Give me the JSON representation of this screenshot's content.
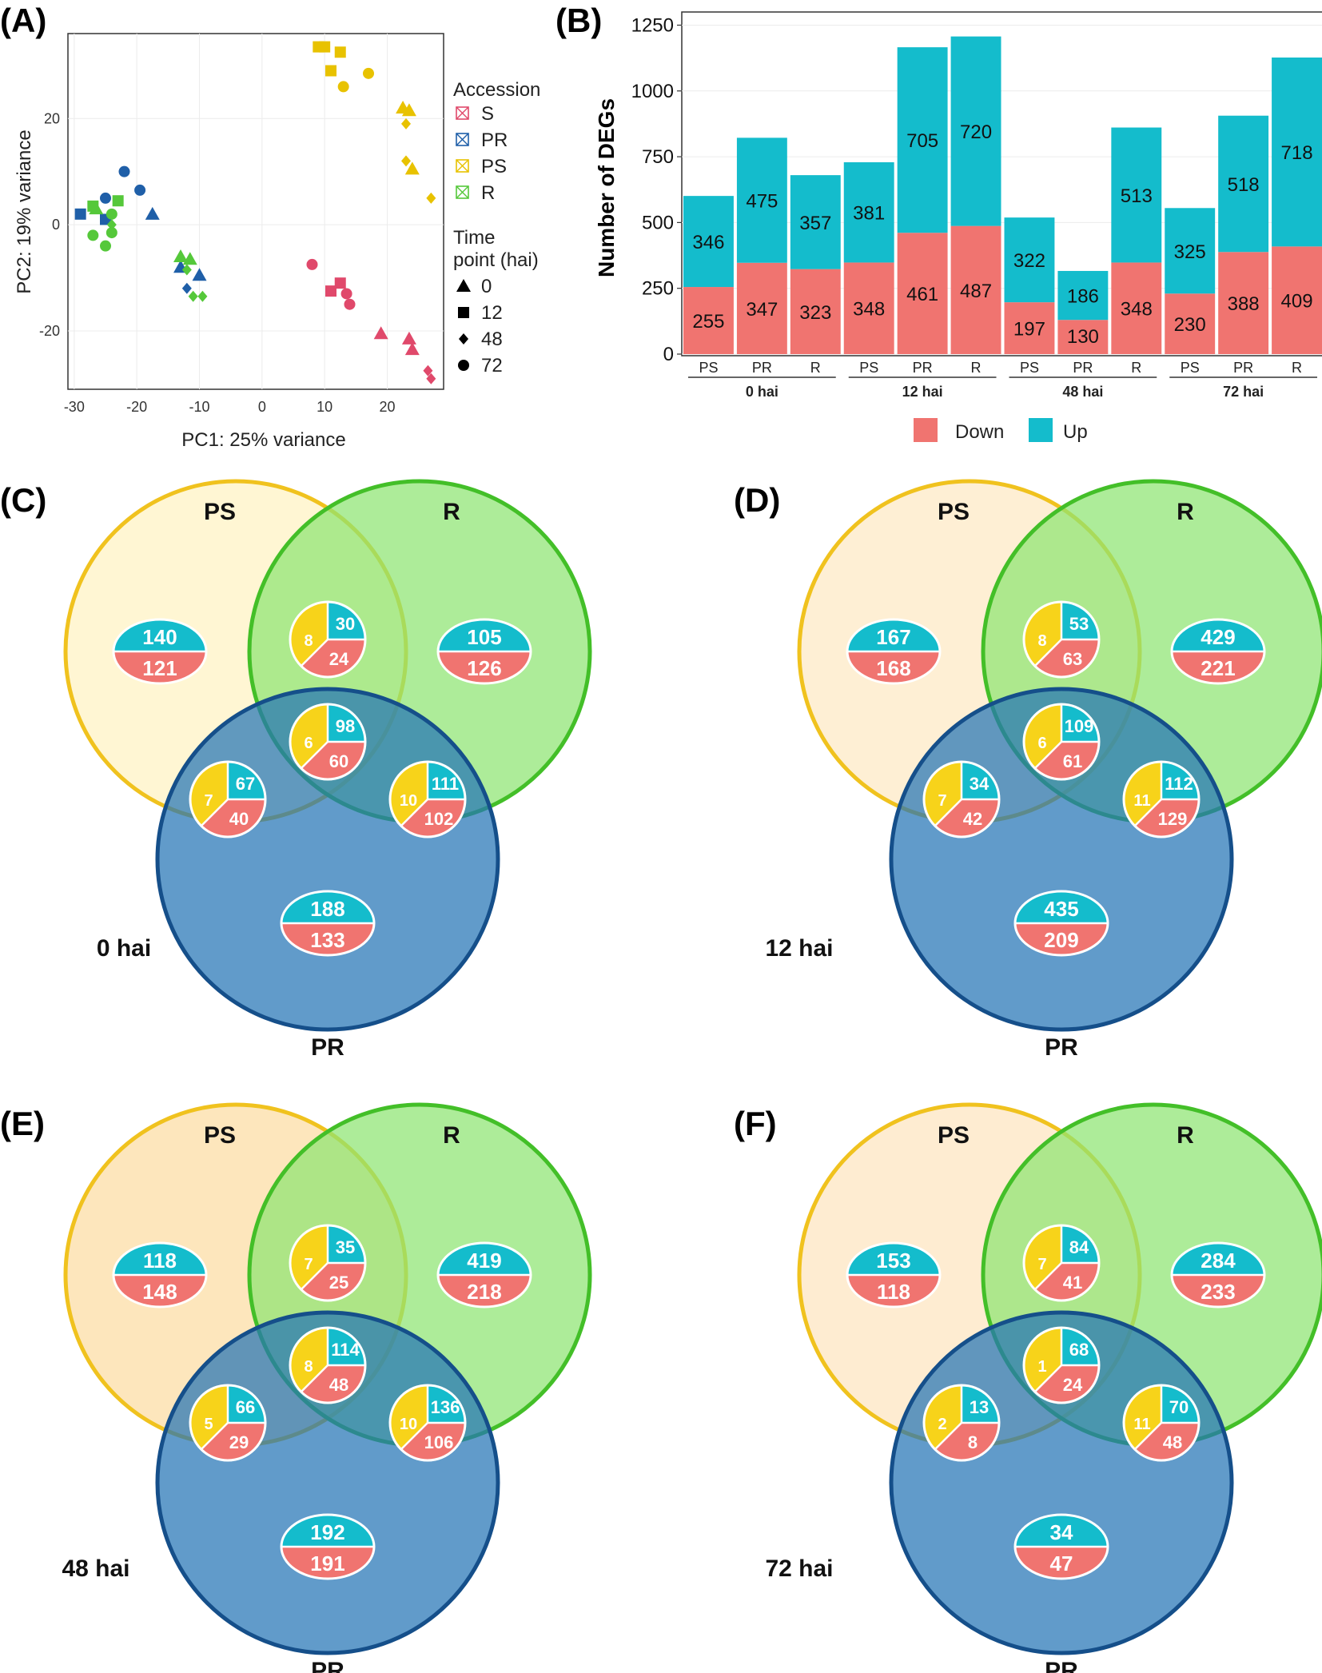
{
  "panel_labels": {
    "A": "(A)",
    "B": "(B)",
    "C": "(C)",
    "D": "(D)",
    "E": "(E)",
    "F": "(F)"
  },
  "colors": {
    "S": "#e0496b",
    "PR": "#1f5fa8",
    "PS": "#e8c200",
    "R": "#55c83a",
    "down": "#f07470",
    "up": "#14bccc",
    "grid": "#ececec"
  },
  "chart_data": [
    {
      "type": "scatter",
      "title": "",
      "xlabel": "PC1: 25% variance",
      "ylabel": "PC2: 19% variance",
      "xlim": [
        -31,
        29
      ],
      "ylim": [
        -31,
        36
      ],
      "xticks": [
        -30,
        -20,
        -10,
        0,
        10,
        20
      ],
      "yticks": [
        -20,
        0,
        20
      ],
      "legend": {
        "accession_title": "Accession",
        "accessions": [
          "S",
          "PR",
          "PS",
          "R"
        ],
        "time_title_1": "Time",
        "time_title_2": "point (hai)",
        "times": [
          "0",
          "12",
          "48",
          "72"
        ]
      },
      "points": [
        {
          "acc": "PS",
          "t": "12",
          "x": 9,
          "y": 33.5
        },
        {
          "acc": "PS",
          "t": "12",
          "x": 10,
          "y": 33.5
        },
        {
          "acc": "PS",
          "t": "12",
          "x": 11,
          "y": 29
        },
        {
          "acc": "PS",
          "t": "12",
          "x": 12.5,
          "y": 32.5
        },
        {
          "acc": "PS",
          "t": "72",
          "x": 13,
          "y": 26
        },
        {
          "acc": "PS",
          "t": "72",
          "x": 17,
          "y": 28.5
        },
        {
          "acc": "PS",
          "t": "0",
          "x": 22.5,
          "y": 22
        },
        {
          "acc": "PS",
          "t": "0",
          "x": 23.5,
          "y": 21.5
        },
        {
          "acc": "PS",
          "t": "48",
          "x": 23,
          "y": 19
        },
        {
          "acc": "PS",
          "t": "48",
          "x": 23,
          "y": 12
        },
        {
          "acc": "PS",
          "t": "0",
          "x": 24,
          "y": 10.5
        },
        {
          "acc": "PS",
          "t": "48",
          "x": 27,
          "y": 5
        },
        {
          "acc": "PR",
          "t": "72",
          "x": -22,
          "y": 10
        },
        {
          "acc": "PR",
          "t": "72",
          "x": -19.5,
          "y": 6.5
        },
        {
          "acc": "PR",
          "t": "0",
          "x": -17.5,
          "y": 2
        },
        {
          "acc": "PR",
          "t": "12",
          "x": -29,
          "y": 2
        },
        {
          "acc": "PR",
          "t": "72",
          "x": -25,
          "y": 5
        },
        {
          "acc": "PR",
          "t": "12",
          "x": -25,
          "y": 1
        },
        {
          "acc": "PR",
          "t": "0",
          "x": -13,
          "y": -8
        },
        {
          "acc": "PR",
          "t": "48",
          "x": -12,
          "y": -12
        },
        {
          "acc": "PR",
          "t": "0",
          "x": -10,
          "y": -9.5
        },
        {
          "acc": "R",
          "t": "12",
          "x": -27,
          "y": 3.5
        },
        {
          "acc": "R",
          "t": "0",
          "x": -26.5,
          "y": 3
        },
        {
          "acc": "R",
          "t": "12",
          "x": -23,
          "y": 4.5
        },
        {
          "acc": "R",
          "t": "72",
          "x": -24,
          "y": 2
        },
        {
          "acc": "R",
          "t": "72",
          "x": -27,
          "y": -2
        },
        {
          "acc": "R",
          "t": "48",
          "x": -24,
          "y": 0
        },
        {
          "acc": "R",
          "t": "72",
          "x": -24,
          "y": -1.5
        },
        {
          "acc": "R",
          "t": "72",
          "x": -25,
          "y": -4
        },
        {
          "acc": "R",
          "t": "0",
          "x": -13,
          "y": -6
        },
        {
          "acc": "R",
          "t": "0",
          "x": -11.5,
          "y": -6.5
        },
        {
          "acc": "R",
          "t": "48",
          "x": -12,
          "y": -8.5
        },
        {
          "acc": "R",
          "t": "48",
          "x": -11,
          "y": -13.5
        },
        {
          "acc": "R",
          "t": "48",
          "x": -9.5,
          "y": -13.5
        },
        {
          "acc": "S",
          "t": "72",
          "x": 8,
          "y": -7.5
        },
        {
          "acc": "S",
          "t": "12",
          "x": 11,
          "y": -12.5
        },
        {
          "acc": "S",
          "t": "12",
          "x": 12.5,
          "y": -11
        },
        {
          "acc": "S",
          "t": "72",
          "x": 13.5,
          "y": -13
        },
        {
          "acc": "S",
          "t": "72",
          "x": 14,
          "y": -15
        },
        {
          "acc": "S",
          "t": "0",
          "x": 19,
          "y": -20.5
        },
        {
          "acc": "S",
          "t": "0",
          "x": 23.5,
          "y": -21.5
        },
        {
          "acc": "S",
          "t": "0",
          "x": 24,
          "y": -23.5
        },
        {
          "acc": "S",
          "t": "48",
          "x": 26.5,
          "y": -27.5
        },
        {
          "acc": "S",
          "t": "48",
          "x": 27,
          "y": -29
        }
      ]
    },
    {
      "type": "bar",
      "stacked": true,
      "ylabel": "Number of DEGs",
      "ylim": [
        0,
        1300
      ],
      "yticks": [
        0,
        250,
        500,
        750,
        1000,
        1250
      ],
      "groups": [
        "0 hai",
        "12 hai",
        "48 hai",
        "72 hai"
      ],
      "categories": [
        "PS",
        "PR",
        "R"
      ],
      "legend": {
        "down_label": "Down",
        "up_label": "Up"
      },
      "series": [
        {
          "name": "Down",
          "values": [
            [
              255,
              347,
              323
            ],
            [
              348,
              461,
              487
            ],
            [
              197,
              130,
              348
            ],
            [
              230,
              388,
              409
            ]
          ]
        },
        {
          "name": "Up",
          "values": [
            [
              346,
              475,
              357
            ],
            [
              381,
              705,
              720
            ],
            [
              322,
              186,
              513
            ],
            [
              325,
              518,
              718
            ]
          ]
        }
      ]
    },
    {
      "type": "venn",
      "time_label": "0 hai",
      "set_labels": [
        "PS",
        "R",
        "PR"
      ],
      "PS_only": {
        "up": 140,
        "down": 121
      },
      "R_only": {
        "up": 105,
        "down": 126
      },
      "PR_only": {
        "up": 188,
        "down": 133
      },
      "PS_R": {
        "y": 8,
        "up": 30,
        "down": 24
      },
      "PS_PR": {
        "y": 7,
        "up": 67,
        "down": 40
      },
      "R_PR": {
        "y": 10,
        "up": 111,
        "down": 102
      },
      "all": {
        "y": 6,
        "up": 98,
        "down": 60
      }
    },
    {
      "type": "venn",
      "time_label": "12 hai",
      "set_labels": [
        "PS",
        "R",
        "PR"
      ],
      "PS_only": {
        "up": 167,
        "down": 168
      },
      "R_only": {
        "up": 429,
        "down": 221
      },
      "PR_only": {
        "up": 435,
        "down": 209
      },
      "PS_R": {
        "y": 8,
        "up": 53,
        "down": 63
      },
      "PS_PR": {
        "y": 7,
        "up": 34,
        "down": 42
      },
      "R_PR": {
        "y": 11,
        "up": 112,
        "down": 129
      },
      "all": {
        "y": 6,
        "up": 109,
        "down": 61
      }
    },
    {
      "type": "venn",
      "time_label": "48 hai",
      "set_labels": [
        "PS",
        "R",
        "PR"
      ],
      "PS_only": {
        "up": 118,
        "down": 148
      },
      "R_only": {
        "up": 419,
        "down": 218
      },
      "PR_only": {
        "up": 192,
        "down": 191
      },
      "PS_R": {
        "y": 7,
        "up": 35,
        "down": 25
      },
      "PS_PR": {
        "y": 5,
        "up": 66,
        "down": 29
      },
      "R_PR": {
        "y": 10,
        "up": 136,
        "down": 106
      },
      "all": {
        "y": 8,
        "up": 114,
        "down": 48
      }
    },
    {
      "type": "venn",
      "time_label": "72 hai",
      "set_labels": [
        "PS",
        "R",
        "PR"
      ],
      "PS_only": {
        "up": 153,
        "down": 118
      },
      "R_only": {
        "up": 284,
        "down": 233
      },
      "PR_only": {
        "up": 34,
        "down": 47
      },
      "PS_R": {
        "y": 7,
        "up": 84,
        "down": 41
      },
      "PS_PR": {
        "y": 2,
        "up": 13,
        "down": 8
      },
      "R_PR": {
        "y": 11,
        "up": 70,
        "down": 48
      },
      "all": {
        "y": 1,
        "up": 68,
        "down": 24
      }
    }
  ]
}
